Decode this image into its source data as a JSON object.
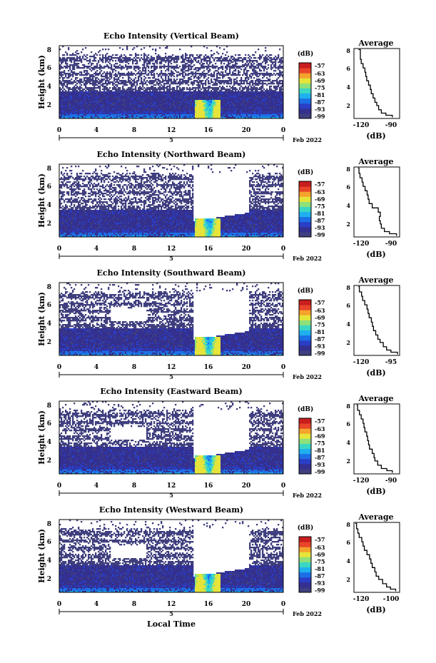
{
  "colors": {
    "colormap": [
      "#3f3f7f",
      "#34308f",
      "#2a3ec6",
      "#1d6fe6",
      "#1fb0ee",
      "#3ad7c4",
      "#8ee07a",
      "#e6e43a",
      "#f4a32c",
      "#e8452a",
      "#c81e1e"
    ],
    "axis": "#000000",
    "profile_line": "#000000"
  },
  "footer": {
    "xlabel": "Local Time"
  },
  "chart_data": [
    {
      "type": "heatmap",
      "title": "Echo Intensity (Vertical Beam)",
      "ylabel": "Height (km)",
      "xticks": [
        "0",
        "4",
        "8",
        "12",
        "16",
        "20",
        "0"
      ],
      "yticks": [
        "8",
        "6",
        "4",
        "2"
      ],
      "date_marker": "5",
      "date_label": "Feb 2022",
      "xlim": [
        0,
        24
      ],
      "ylim": [
        1.5,
        8
      ],
      "colorbar": {
        "unit": "(dB)",
        "ticks": [
          "-57",
          "-63",
          "-69",
          "-75",
          "-81",
          "-87",
          "-93",
          "-99"
        ]
      },
      "profile": {
        "title": "Average",
        "xlabel": "(dB)",
        "xticks": [
          "-120",
          "-90"
        ],
        "yticks": [
          "8",
          "6",
          "4",
          "2"
        ],
        "xlim": [
          -130,
          -80
        ],
        "x": [
          -88,
          -95,
          -100,
          -103,
          -105,
          -107,
          -109,
          -111,
          -112,
          -114,
          -116,
          -117,
          -118,
          -120,
          -122,
          -123,
          -123,
          -125
        ],
        "y": [
          1.6,
          1.8,
          2.0,
          2.3,
          2.7,
          3.0,
          3.4,
          3.8,
          4.2,
          4.6,
          5.0,
          5.4,
          5.8,
          6.2,
          6.6,
          7.0,
          7.4,
          7.9
        ]
      }
    },
    {
      "type": "heatmap",
      "title": "Echo Intensity (Northward Beam)",
      "ylabel": "Height (km)",
      "xticks": [
        "0",
        "4",
        "8",
        "12",
        "16",
        "20",
        "0"
      ],
      "yticks": [
        "8",
        "6",
        "4",
        "2"
      ],
      "date_marker": "5",
      "date_label": "Feb 2022",
      "xlim": [
        0,
        24
      ],
      "ylim": [
        1.5,
        8
      ],
      "colorbar": {
        "unit": "(dB)",
        "ticks": [
          "-57",
          "-63",
          "-69",
          "-75",
          "-81",
          "-87",
          "-93",
          "-99"
        ]
      },
      "profile": {
        "title": "Average",
        "xlabel": "(dB)",
        "xticks": [
          "-120",
          "-90"
        ],
        "yticks": [
          "8",
          "6",
          "4",
          "2"
        ],
        "xlim": [
          -130,
          -85
        ],
        "x": [
          -88,
          -95,
          -100,
          -103,
          -104,
          -105,
          -104,
          -106,
          -112,
          -115,
          -116,
          -117,
          -119,
          -121,
          -122,
          -124,
          -125,
          -126
        ],
        "y": [
          1.6,
          1.8,
          2.0,
          2.3,
          2.7,
          3.0,
          3.4,
          3.8,
          4.2,
          4.6,
          5.0,
          5.4,
          5.8,
          6.2,
          6.6,
          7.0,
          7.4,
          7.9
        ]
      }
    },
    {
      "type": "heatmap",
      "title": "Echo Intensity (Southward Beam)",
      "ylabel": "Height (km)",
      "xticks": [
        "0",
        "4",
        "8",
        "12",
        "16",
        "20",
        "0"
      ],
      "yticks": [
        "8",
        "6",
        "4",
        "2"
      ],
      "date_marker": "5",
      "date_label": "Feb 2022",
      "xlim": [
        0,
        24
      ],
      "ylim": [
        1.5,
        8
      ],
      "colorbar": {
        "unit": "(dB)",
        "ticks": [
          "-57",
          "-63",
          "-69",
          "-75",
          "-81",
          "-87",
          "-93",
          "-99"
        ]
      },
      "profile": {
        "title": "Average",
        "xlabel": "(dB)",
        "xticks": [
          "-120",
          "-95"
        ],
        "yticks": [
          "8",
          "6",
          "4",
          "2"
        ],
        "xlim": [
          -130,
          -88
        ],
        "x": [
          -90,
          -96,
          -100,
          -103,
          -106,
          -108,
          -110,
          -112,
          -113,
          -114,
          -116,
          -117,
          -118,
          -120,
          -122,
          -123,
          -125,
          -126
        ],
        "y": [
          1.6,
          1.8,
          2.0,
          2.3,
          2.7,
          3.0,
          3.4,
          3.8,
          4.2,
          4.6,
          5.0,
          5.4,
          5.8,
          6.2,
          6.6,
          7.0,
          7.4,
          7.9
        ]
      }
    },
    {
      "type": "heatmap",
      "title": "Echo Intensity (Eastward Beam)",
      "ylabel": "Height (km)",
      "xticks": [
        "0",
        "4",
        "8",
        "12",
        "16",
        "20",
        "0"
      ],
      "yticks": [
        "8",
        "6",
        "4",
        "2"
      ],
      "date_marker": "5",
      "date_label": "Feb 2022",
      "xlim": [
        0,
        24
      ],
      "ylim": [
        1.5,
        8
      ],
      "colorbar": {
        "unit": "(dB)",
        "ticks": [
          "-57",
          "-63",
          "-69",
          "-75",
          "-81",
          "-87",
          "-93",
          "-99"
        ]
      },
      "profile": {
        "title": "Average",
        "xlabel": "(dB)",
        "xticks": [
          "-120",
          "-90"
        ],
        "yticks": [
          "8",
          "6",
          "4",
          "2"
        ],
        "xlim": [
          -130,
          -80
        ],
        "x": [
          -88,
          -94,
          -100,
          -104,
          -107,
          -108,
          -110,
          -113,
          -114,
          -115,
          -116,
          -118,
          -119,
          -120,
          -122,
          -124,
          -126,
          -127
        ],
        "y": [
          1.6,
          1.8,
          2.0,
          2.3,
          2.7,
          3.0,
          3.4,
          3.8,
          4.2,
          4.6,
          5.0,
          5.4,
          5.8,
          6.2,
          6.6,
          7.0,
          7.4,
          7.9
        ]
      }
    },
    {
      "type": "heatmap",
      "title": "Echo Intensity (Westward Beam)",
      "ylabel": "Height (km)",
      "xticks": [
        "0",
        "4",
        "8",
        "12",
        "16",
        "20",
        "0"
      ],
      "yticks": [
        "8",
        "6",
        "4",
        "2"
      ],
      "date_marker": "5",
      "date_label": "Feb 2022",
      "xlim": [
        0,
        24
      ],
      "ylim": [
        1.5,
        8
      ],
      "colorbar": {
        "unit": "(dB)",
        "ticks": [
          "-57",
          "-63",
          "-69",
          "-75",
          "-81",
          "-87",
          "-93",
          "-99"
        ]
      },
      "profile": {
        "title": "Average",
        "xlabel": "(dB)",
        "xticks": [
          "-120",
          "-100"
        ],
        "yticks": [
          "8",
          "6",
          "4",
          "2"
        ],
        "xlim": [
          -125,
          -90
        ],
        "x": [
          -93,
          -97,
          -100,
          -103,
          -106,
          -108,
          -109,
          -111,
          -112,
          -113,
          -115,
          -117,
          -118,
          -119,
          -121,
          -122,
          -123,
          -124
        ],
        "y": [
          1.6,
          1.8,
          2.0,
          2.3,
          2.7,
          3.0,
          3.4,
          3.8,
          4.2,
          4.6,
          5.0,
          5.4,
          5.8,
          6.2,
          6.6,
          7.0,
          7.4,
          7.9
        ]
      }
    }
  ]
}
